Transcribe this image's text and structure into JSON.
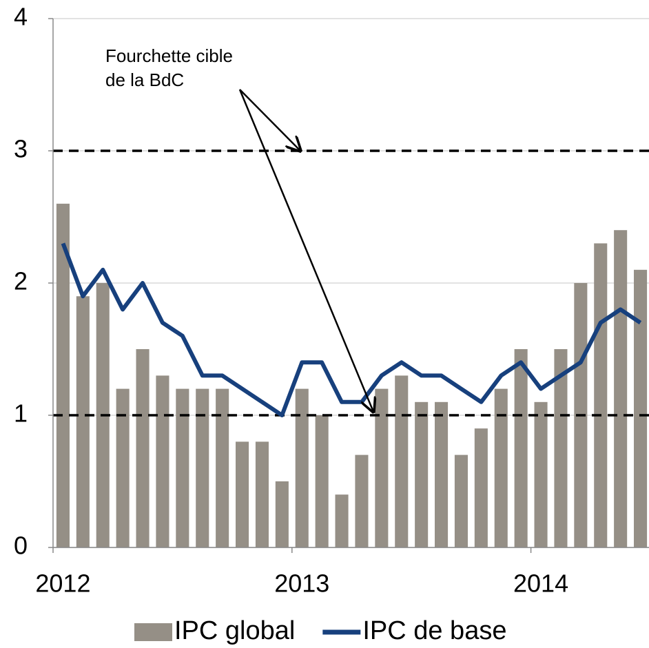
{
  "chart_data": {
    "type": "bar_line",
    "categories": [
      "2012",
      null,
      null,
      null,
      null,
      null,
      null,
      null,
      null,
      null,
      null,
      null,
      "2013",
      null,
      null,
      null,
      null,
      null,
      null,
      null,
      null,
      null,
      null,
      null,
      "2014",
      null,
      null,
      null,
      null,
      null
    ],
    "series": [
      {
        "name": "IPC global",
        "type": "bar",
        "color": "#958f86",
        "values": [
          2.6,
          1.9,
          2.0,
          1.2,
          1.5,
          1.3,
          1.2,
          1.2,
          1.2,
          0.8,
          0.8,
          0.5,
          1.2,
          1.0,
          0.4,
          0.7,
          1.2,
          1.3,
          1.1,
          1.1,
          0.7,
          0.9,
          1.2,
          1.5,
          1.1,
          1.5,
          2.0,
          2.3,
          2.4,
          2.1
        ]
      },
      {
        "name": "IPC de base",
        "type": "line",
        "color": "#17407d",
        "values": [
          2.3,
          1.9,
          2.1,
          1.8,
          2.0,
          1.7,
          1.6,
          1.3,
          1.3,
          1.2,
          1.1,
          1.0,
          1.4,
          1.4,
          1.1,
          1.1,
          1.3,
          1.4,
          1.3,
          1.3,
          1.2,
          1.1,
          1.3,
          1.4,
          1.2,
          1.3,
          1.4,
          1.7,
          1.8,
          1.7
        ]
      }
    ],
    "reference_lines": [
      1,
      3
    ],
    "annotation": [
      "Fourchette cible",
      "de la BdC"
    ],
    "ylim": [
      0,
      4
    ],
    "yticks": [
      0,
      1,
      2,
      3,
      4
    ],
    "grid": true,
    "legend": "bottom"
  }
}
